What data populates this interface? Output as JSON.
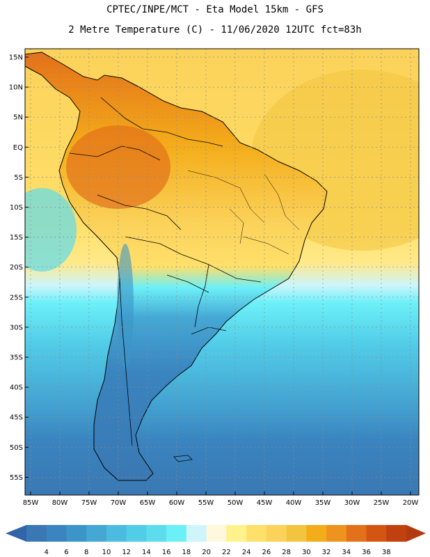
{
  "title_line1": "CPTEC/INPE/MCT -  Eta Model 15km - GFS",
  "title_line2": "2 Metre Temperature (C) - 11/06/2020 12UTC fct=83h",
  "lat_labels": [
    "15N",
    "10N",
    "5N",
    "EQ",
    "5S",
    "10S",
    "15S",
    "20S",
    "25S",
    "30S",
    "35S",
    "40S",
    "45S",
    "50S",
    "55S"
  ],
  "lon_labels": [
    "85W",
    "80W",
    "75W",
    "70W",
    "65W",
    "60W",
    "55W",
    "50W",
    "45W",
    "40W",
    "35W",
    "30W",
    "25W",
    "20W"
  ],
  "colorbar": {
    "labels": [
      "4",
      "6",
      "8",
      "10",
      "12",
      "14",
      "16",
      "18",
      "20",
      "22",
      "24",
      "26",
      "28",
      "30",
      "32",
      "34",
      "36",
      "38"
    ],
    "colors": [
      "#3a78b3",
      "#3a84bf",
      "#3c95c8",
      "#45a8d4",
      "#4bbcdf",
      "#52cde8",
      "#5ddcee",
      "#6cf0f8",
      "#cdf5fb",
      "#fff8dc",
      "#fff28c",
      "#ffe06a",
      "#fbd25a",
      "#f3c43e",
      "#f4ad1a",
      "#ee931e",
      "#e3701a",
      "#d45512",
      "#c14010"
    ],
    "under_color": "#3264a8",
    "over_color": "#b33a10"
  }
}
